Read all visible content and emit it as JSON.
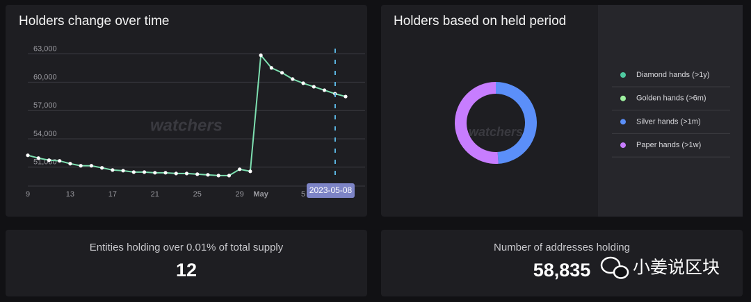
{
  "chart_data": [
    {
      "type": "line",
      "title": "Holders change over time",
      "categories": [
        "9",
        null,
        null,
        null,
        "13",
        null,
        null,
        null,
        "17",
        null,
        null,
        null,
        "21",
        null,
        null,
        null,
        "25",
        null,
        null,
        null,
        "29",
        null,
        "May",
        null,
        null,
        null,
        "5",
        null,
        null,
        null,
        null
      ],
      "series": [
        {
          "color": "#7ddfb0",
          "values": [
            52260,
            51960,
            51740,
            51670,
            51370,
            51150,
            51150,
            50930,
            50700,
            50630,
            50480,
            50480,
            50410,
            50410,
            50330,
            50330,
            50260,
            50190,
            50110,
            50110,
            50780,
            50560,
            62850,
            61520,
            61000,
            60330,
            59890,
            59520,
            59150,
            58780,
            58480
          ]
        }
      ],
      "ylim": [
        49000,
        64000
      ],
      "yticks": [
        {
          "value": 51000,
          "label": "51,000"
        },
        {
          "value": 54000,
          "label": "54,000"
        },
        {
          "value": 57000,
          "label": "57,000"
        },
        {
          "value": 60000,
          "label": "60,000"
        },
        {
          "value": 63000,
          "label": "63,000"
        }
      ],
      "grid": true,
      "tooltip": "2023-05-08"
    },
    {
      "type": "pie",
      "title": "Holders based on held period",
      "categories": [
        "Diamond hands (>1y)",
        "Golden hands (>6m)",
        "Silver hands (>1m)",
        "Paper hands (>1w)"
      ],
      "values": [
        0,
        0,
        49,
        51
      ],
      "colors": [
        "#4fc9a0",
        "#9ef0a0",
        "#5b8ff9",
        "#c77dff"
      ]
    }
  ],
  "cards": [
    {
      "label": "Entities holding over 0.01% of total supply",
      "value": "12"
    },
    {
      "label": "Number of addresses holding",
      "value": "58,835"
    }
  ],
  "watermark": "watchers",
  "wechat_watermark": "小姜说区块"
}
